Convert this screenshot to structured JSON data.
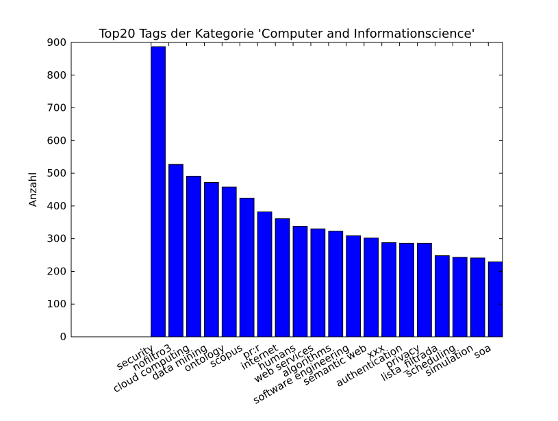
{
  "chart_data": {
    "type": "bar",
    "title": "Top20 Tags der Kategorie 'Computer and Informationscience'",
    "xlabel": "",
    "ylabel": "Anzahl",
    "ylim": [
      0,
      900
    ],
    "yticks": [
      0,
      100,
      200,
      300,
      400,
      500,
      600,
      700,
      800,
      900
    ],
    "categories": [
      "security",
      "nofiltro3",
      "cloud computing",
      "data mining",
      "ontology",
      "scopus",
      "pr:r",
      "internet",
      "humans",
      "web services",
      "algorithms",
      "software engineering",
      "semantic web",
      "xxx",
      "authentication",
      "privacy",
      "lista_filtrada",
      "scheduling",
      "simulation",
      "soa"
    ],
    "values": [
      887,
      527,
      491,
      472,
      458,
      424,
      382,
      361,
      338,
      330,
      323,
      309,
      302,
      288,
      286,
      286,
      248,
      243,
      241,
      229
    ],
    "bar_color": "#0000ff",
    "bar_edge_color": "#000000",
    "grid": false,
    "legend": "none",
    "xtick_rotation": "30 degrees"
  }
}
